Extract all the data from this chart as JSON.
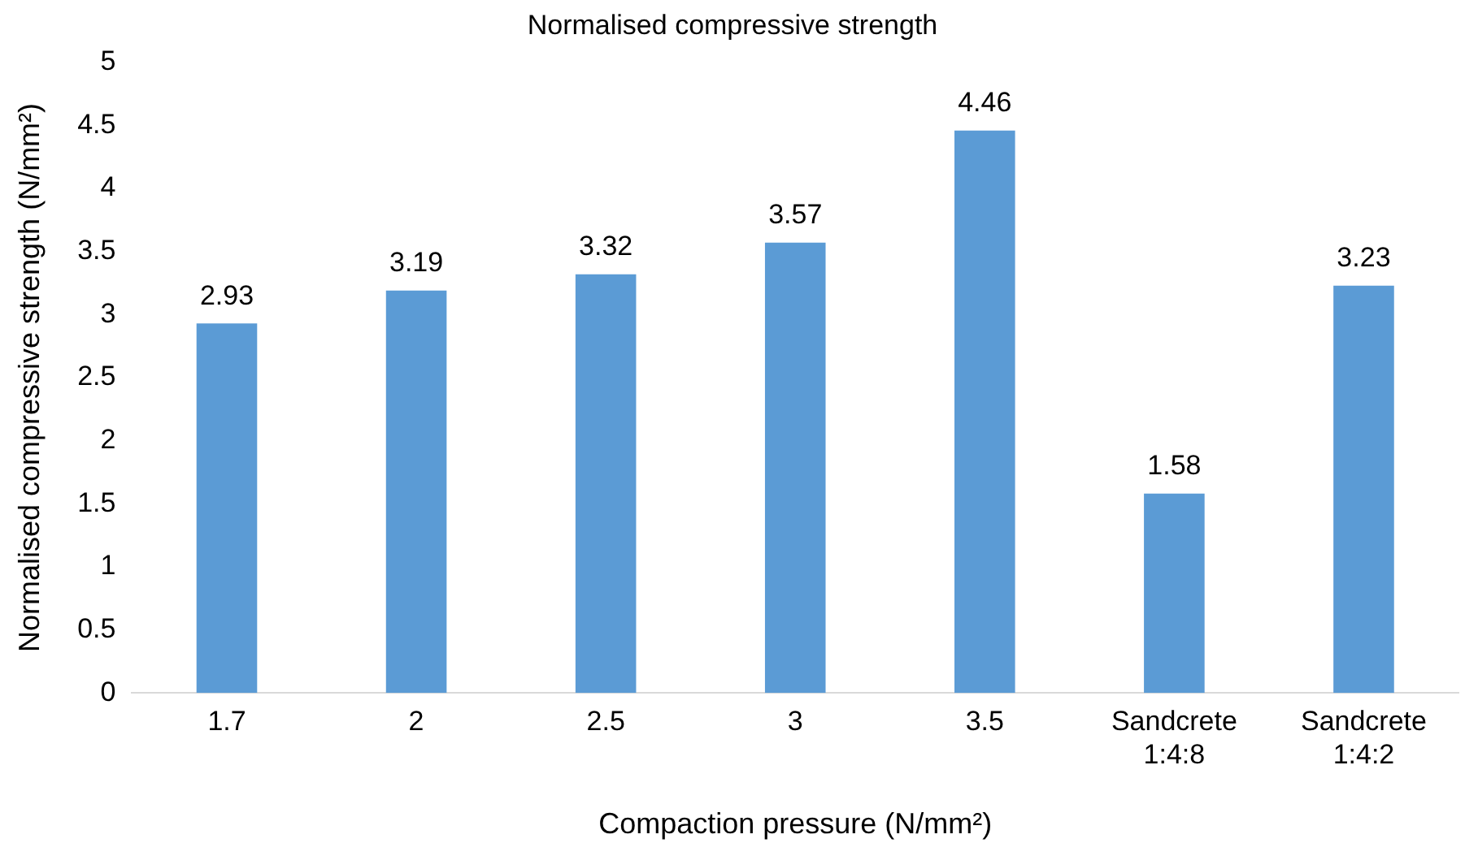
{
  "chart_data": {
    "type": "bar",
    "title": "Normalised compressive strength",
    "xlabel": "Compaction pressure (N/mm²)",
    "ylabel": "Normalised compressive strength (N/mm²)",
    "categories": [
      "1.7",
      "2",
      "2.5",
      "3",
      "3.5",
      "Sandcrete 1:4:8",
      "Sandcrete 1:4:2"
    ],
    "values": [
      2.93,
      3.19,
      3.32,
      3.57,
      4.46,
      1.58,
      3.23
    ],
    "color": "#5b9bd5",
    "ylim": [
      0,
      5
    ],
    "yticks": [
      0,
      0.5,
      1,
      1.5,
      2,
      2.5,
      3,
      3.5,
      4,
      4.5,
      5
    ],
    "grid": false,
    "legend": false,
    "data_labels": true
  }
}
